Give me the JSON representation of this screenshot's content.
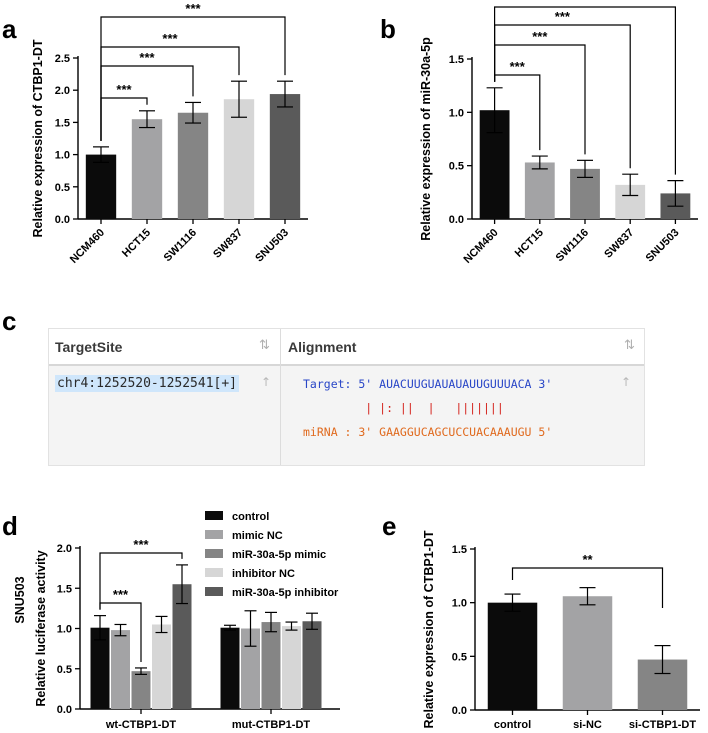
{
  "panel_letters": {
    "a": "a",
    "b": "b",
    "c": "c",
    "d": "d",
    "e": "e"
  },
  "colors": {
    "black": "#0b0b0b",
    "gray1": "#a3a3a5",
    "gray2": "#858585",
    "gray3": "#d6d6d6",
    "gray4": "#5a5a5a"
  },
  "chart_data": [
    {
      "id": "a",
      "type": "bar",
      "title": "",
      "ylabel": "Relative expression of CTBP1-DT",
      "xlabel": "",
      "ylim": [
        0,
        2.5
      ],
      "yticks": [
        "0.0",
        "0.5",
        "1.0",
        "1.5",
        "2.0",
        "2.5"
      ],
      "categories": [
        "NCM460",
        "HCT15",
        "SW1116",
        "SW837",
        "SNU503"
      ],
      "values": [
        1.0,
        1.55,
        1.65,
        1.86,
        1.94
      ],
      "errors": [
        0.12,
        0.13,
        0.16,
        0.28,
        0.2
      ],
      "significance": [
        {
          "from": 0,
          "to": 1,
          "label": "***"
        },
        {
          "from": 0,
          "to": 2,
          "label": "***"
        },
        {
          "from": 0,
          "to": 3,
          "label": "***"
        },
        {
          "from": 0,
          "to": 4,
          "label": "***"
        }
      ]
    },
    {
      "id": "b",
      "type": "bar",
      "title": "",
      "ylabel": "Relative expression of miR-30a-5p",
      "xlabel": "",
      "ylim": [
        0,
        1.5
      ],
      "yticks": [
        "0.0",
        "0.5",
        "1.0",
        "1.5"
      ],
      "categories": [
        "NCM460",
        "HCT15",
        "SW1116",
        "SW837",
        "SNU503"
      ],
      "values": [
        1.02,
        0.53,
        0.47,
        0.32,
        0.24
      ],
      "errors": [
        0.21,
        0.06,
        0.08,
        0.1,
        0.12
      ],
      "significance": [
        {
          "from": 0,
          "to": 1,
          "label": "***"
        },
        {
          "from": 0,
          "to": 2,
          "label": "***"
        },
        {
          "from": 0,
          "to": 3,
          "label": "***"
        },
        {
          "from": 0,
          "to": 4,
          "label": "***"
        }
      ]
    },
    {
      "id": "d",
      "type": "bar",
      "title": "SNU503",
      "ylabel": "Relative luciferase activity",
      "xlabel": "",
      "ylim": [
        0,
        2.0
      ],
      "yticks": [
        "0.0",
        "0.5",
        "1.0",
        "1.5",
        "2.0"
      ],
      "categories": [
        "wt-CTBP1-DT",
        "mut-CTBP1-DT"
      ],
      "legend_position": "top-right",
      "series": [
        {
          "name": "control",
          "values": [
            1.01,
            1.01
          ],
          "errors": [
            0.15,
            0.03
          ]
        },
        {
          "name": "mimic NC",
          "values": [
            0.98,
            1.0
          ],
          "errors": [
            0.07,
            0.22
          ]
        },
        {
          "name": "miR-30a-5p mimic",
          "values": [
            0.47,
            1.08
          ],
          "errors": [
            0.04,
            0.12
          ]
        },
        {
          "name": "inhibitor NC",
          "values": [
            1.05,
            1.03
          ],
          "errors": [
            0.1,
            0.05
          ]
        },
        {
          "name": "miR-30a-5p inhibitor",
          "values": [
            1.55,
            1.09
          ],
          "errors": [
            0.24,
            0.1
          ]
        }
      ],
      "significance": [
        {
          "group": 0,
          "from": 0,
          "to": 2,
          "label": "***"
        },
        {
          "group": 0,
          "from": 0,
          "to": 4,
          "label": "***"
        }
      ]
    },
    {
      "id": "e",
      "type": "bar",
      "title": "",
      "ylabel": "Relative expression of CTBP1-DT",
      "xlabel": "",
      "ylim": [
        0,
        1.5
      ],
      "yticks": [
        "0.0",
        "0.5",
        "1.0",
        "1.5"
      ],
      "categories": [
        "control",
        "si-NC",
        "si-CTBP1-DT"
      ],
      "values": [
        1.0,
        1.06,
        0.47
      ],
      "errors": [
        0.08,
        0.08,
        0.13
      ],
      "significance": [
        {
          "from": 0,
          "to": 2,
          "label": "**"
        }
      ]
    }
  ],
  "table": {
    "headers": {
      "target_site": "TargetSite",
      "alignment": "Alignment"
    },
    "sort_glyph": "⇅",
    "up_glyph": "↑",
    "row": {
      "site": "chr4:1252520-1252541[+]",
      "target_line": "Target: 5' AUACUUGUAUAUAUUGUUUACA 3'",
      "bars_line": "         | |: ||  |   |||||||",
      "mirna_line": "miRNA : 3' GAAGGUCAGCUCCUACAAAUGU 5'"
    }
  }
}
